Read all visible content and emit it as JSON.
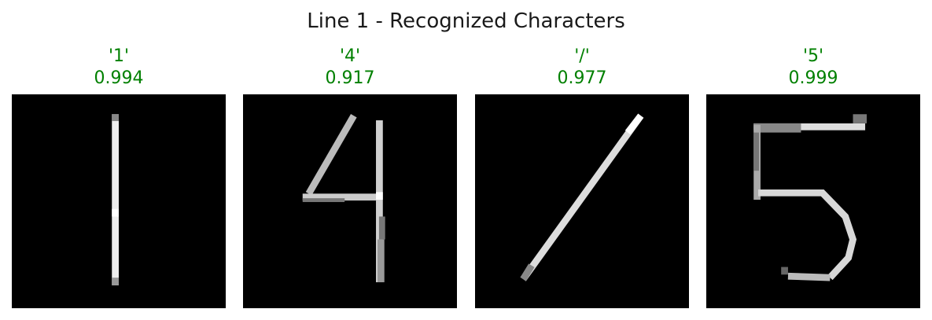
{
  "figure": {
    "title": "Line 1 - Recognized Characters"
  },
  "colors": {
    "label": "#008000",
    "image_bg": "#000000",
    "stroke": "#e8e8e8"
  },
  "panels": [
    {
      "char_label": "'1'",
      "confidence": "0.994",
      "glyph": "digit-one"
    },
    {
      "char_label": "'4'",
      "confidence": "0.917",
      "glyph": "digit-four"
    },
    {
      "char_label": "'/'",
      "confidence": "0.977",
      "glyph": "slash"
    },
    {
      "char_label": "'5'",
      "confidence": "0.999",
      "glyph": "digit-five"
    }
  ]
}
